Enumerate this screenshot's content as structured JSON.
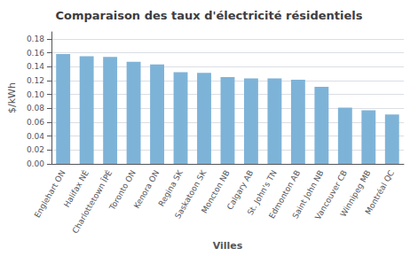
{
  "chart_data": {
    "type": "bar",
    "title": "Comparaison des taux d'électricité résidentiels",
    "xlabel": "Villes",
    "ylabel": "$/kWh",
    "categories": [
      "Englehart ON",
      "Halifax NÉ",
      "Charlottetown ÎPÉ",
      "Toronto ON",
      "Kenora ON",
      "Regina SK",
      "Saskatoon SK",
      "Moncton NB",
      "Calgary AB",
      "St. John's TN",
      "Edmonton AB",
      "Saint John NB",
      "Vancouver CB",
      "Winnipeg MB",
      "Montréal QC"
    ],
    "values": [
      0.158,
      0.155,
      0.154,
      0.147,
      0.143,
      0.132,
      0.131,
      0.125,
      0.123,
      0.123,
      0.121,
      0.111,
      0.081,
      0.077,
      0.071
    ],
    "color": "#7EB3D8",
    "ylim": [
      0,
      0.19
    ],
    "yticks": [
      {
        "value": 0,
        "label": "0.00"
      },
      0.02,
      0.04,
      0.06,
      0.08,
      {
        "value": 0.1,
        "label": "0.10"
      },
      0.12,
      0.14,
      0.16,
      0.18
    ],
    "grid": true
  }
}
